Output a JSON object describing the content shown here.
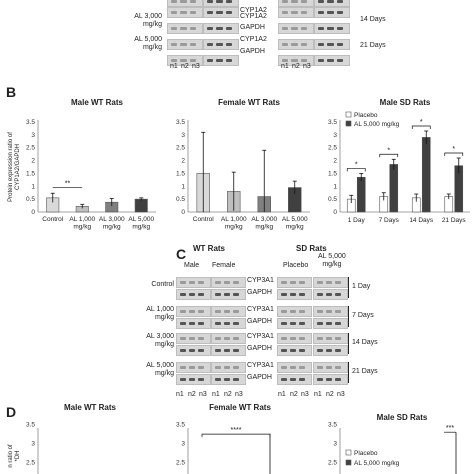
{
  "panels": {
    "B": "B",
    "C": "C",
    "D": "D"
  },
  "top_blot": {
    "rows": [
      {
        "dose": "",
        "proteins": [
          "",
          "CYP1A2"
        ]
      },
      {
        "dose": "AL 3,000\nmg/kg",
        "proteins": [
          "CYP1A2",
          "GAPDH"
        ],
        "timepoint": "14 Days"
      },
      {
        "dose": "AL 5,000\nmg/kg",
        "proteins": [
          "CYP1A2",
          "GAPDH"
        ],
        "timepoint": "21 Days"
      }
    ],
    "lanes": [
      "n1",
      "n2",
      "n3",
      "n1",
      "n2",
      "n3"
    ]
  },
  "chart_data": [
    {
      "type": "bar",
      "title": "Male WT Rats",
      "ylabel": "Protein expression ratio of CYP1A2/GAPDH",
      "ylim": [
        0,
        3.5
      ],
      "yticks": [
        "0",
        "0.5",
        "1",
        "1.5",
        "2",
        "2.5",
        "3",
        "3.5"
      ],
      "categories": [
        "Control",
        "AL 1,000\nmg/kg",
        "AL 3,000\nmg/kg",
        "AL 5,000\nmg/kg"
      ],
      "values": [
        0.55,
        0.22,
        0.38,
        0.5
      ],
      "errors": [
        0.18,
        0.08,
        0.15,
        0.05
      ],
      "colors": [
        "#d9d9d9",
        "#bfbfbf",
        "#808080",
        "#404040"
      ],
      "annotations": [
        {
          "text": "**",
          "from": 0,
          "to": 1
        }
      ]
    },
    {
      "type": "bar",
      "title": "Female WT Rats",
      "ylim": [
        0,
        3.5
      ],
      "yticks": [
        "0",
        "0.5",
        "1",
        "1.5",
        "2",
        "2.5",
        "3",
        "3.5"
      ],
      "categories": [
        "Control",
        "AL 1,000\nmg/kg",
        "AL 3,000\nmg/kg",
        "AL 5,000\nmg/kg"
      ],
      "values": [
        1.5,
        0.8,
        0.6,
        0.95
      ],
      "errors": [
        1.6,
        0.75,
        1.8,
        0.25
      ],
      "colors": [
        "#d9d9d9",
        "#bfbfbf",
        "#808080",
        "#404040"
      ]
    },
    {
      "type": "bar",
      "title": "Male SD Rats",
      "ylim": [
        0,
        3.5
      ],
      "yticks": [
        "0",
        "0.5",
        "1",
        "1.5",
        "2",
        "2.5",
        "3",
        "3.5"
      ],
      "categories": [
        "1 Day",
        "7 Days",
        "14 Days",
        "21 Days"
      ],
      "series": [
        {
          "name": "Placebo",
          "values": [
            0.5,
            0.6,
            0.55,
            0.6
          ],
          "errors": [
            0.15,
            0.15,
            0.15,
            0.1
          ],
          "color": "#ffffff"
        },
        {
          "name": "AL 5,000 mg/kg",
          "values": [
            1.35,
            1.85,
            2.9,
            1.8
          ],
          "errors": [
            0.15,
            0.2,
            0.25,
            0.3
          ],
          "color": "#404040"
        }
      ],
      "legend": "top-left",
      "annotations": [
        "*",
        "*",
        "*",
        "*"
      ]
    },
    {
      "type": "bar",
      "title": "Male WT Rats",
      "ylabel": "n ratio of\n*DH",
      "ylim": [
        0,
        3.5
      ],
      "yticks": [
        "2.5",
        "3",
        "3.5"
      ]
    },
    {
      "type": "bar",
      "title": "Female WT Rats",
      "ylim": [
        0,
        3.5
      ],
      "yticks": [
        "2.5",
        "3",
        "3.5"
      ],
      "annotations": [
        "****"
      ]
    },
    {
      "type": "bar",
      "title": "Male SD Rats",
      "ylim": [
        0,
        3.5
      ],
      "yticks": [
        "2.5",
        "3",
        "3.5"
      ],
      "series": [
        {
          "name": "Placebo"
        },
        {
          "name": "AL 5,000 mg/kg"
        }
      ],
      "annotations": [
        "***"
      ]
    }
  ],
  "panel_c": {
    "group_headers": [
      "WT Rats",
      "SD Rats"
    ],
    "sub_headers": [
      "Male",
      "Female",
      "Placebo",
      "AL 5,000\nmg/kg"
    ],
    "rows": [
      {
        "dose": "Control",
        "proteins": [
          "CYP3A1",
          "GAPDH"
        ],
        "timepoint": "1 Day"
      },
      {
        "dose": "AL 1,000\nmg/kg",
        "proteins": [
          "CYP3A1",
          "GAPDH"
        ],
        "timepoint": "7 Days"
      },
      {
        "dose": "AL 3,000\nmg/kg",
        "proteins": [
          "CYP3A1",
          "GAPDH"
        ],
        "timepoint": "14 Days"
      },
      {
        "dose": "AL 5,000\nmg/kg",
        "proteins": [
          "CYP3A1",
          "GAPDH"
        ],
        "timepoint": "21 Days"
      }
    ],
    "lanes": [
      "n1",
      "n2",
      "n3",
      "n1",
      "n2",
      "n3"
    ]
  }
}
